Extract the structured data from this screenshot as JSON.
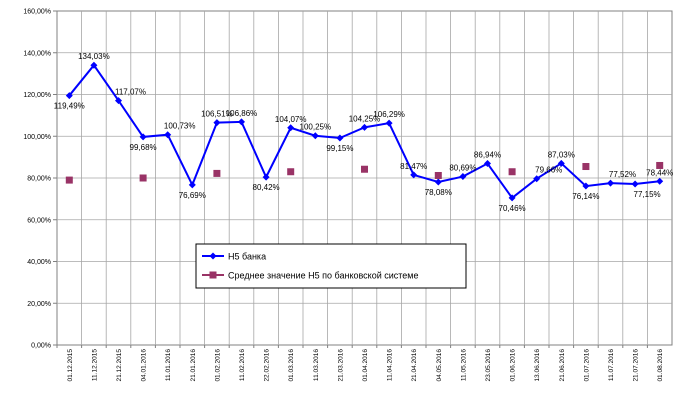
{
  "chart_data": {
    "type": "line",
    "title": "",
    "xlabel": "",
    "ylabel": "",
    "ylim": [
      0,
      160
    ],
    "grid": true,
    "y_ticks": [
      "0,00%",
      "20,00%",
      "40,00%",
      "60,00%",
      "80,00%",
      "100,00%",
      "120,00%",
      "140,00%",
      "160,00%"
    ],
    "categories": [
      "01.12.2015",
      "11.12.2015",
      "21.12.2015",
      "04.01.2016",
      "11.01.2016",
      "21.01.2016",
      "01.02.2016",
      "11.02.2016",
      "22.02.2016",
      "01.03.2016",
      "11.03.2016",
      "21.03.2016",
      "01.04.2016",
      "11.04.2016",
      "21.04.2016",
      "04.05.2016",
      "11.05.2016",
      "23.05.2016",
      "01.06.2016",
      "13.06.2016",
      "21.06.2016",
      "01.07.2016",
      "11.07.2016",
      "21.07.2016",
      "01.08.2016"
    ],
    "series": [
      {
        "name": "Н5 банка",
        "color": "#0000ff",
        "marker": "diamond",
        "values": [
          119.49,
          134.03,
          117.07,
          99.68,
          100.73,
          76.69,
          106.51,
          106.86,
          80.42,
          104.07,
          100.25,
          99.15,
          104.25,
          106.29,
          81.47,
          78.08,
          80.69,
          86.94,
          70.46,
          79.66,
          87.03,
          76.14,
          77.52,
          77.15,
          78.44
        ],
        "labels": [
          "119,49%",
          "134,03%",
          "117,07%",
          "99,68%",
          "100,73%",
          "76,69%",
          "106,51%",
          "106,86%",
          "80,42%",
          "104,07%",
          "100,25%",
          "99,15%",
          "104,25%",
          "106,29%",
          "81,47%",
          "78,08%",
          "80,69%",
          "86,94%",
          "70,46%",
          "79,66%",
          "87,03%",
          "76,14%",
          "77,52%",
          "77,15%",
          "78,44%"
        ]
      },
      {
        "name": "Среднее значение Н5 по банковской системе",
        "color": "#993366",
        "marker": "square",
        "values": [
          79.0,
          null,
          null,
          80.0,
          null,
          null,
          82.2,
          null,
          null,
          83.0,
          null,
          null,
          84.2,
          null,
          null,
          81.2,
          null,
          null,
          83.0,
          null,
          null,
          85.5,
          null,
          null,
          86.0
        ]
      }
    ],
    "legend": {
      "position": "center-bottom"
    }
  }
}
